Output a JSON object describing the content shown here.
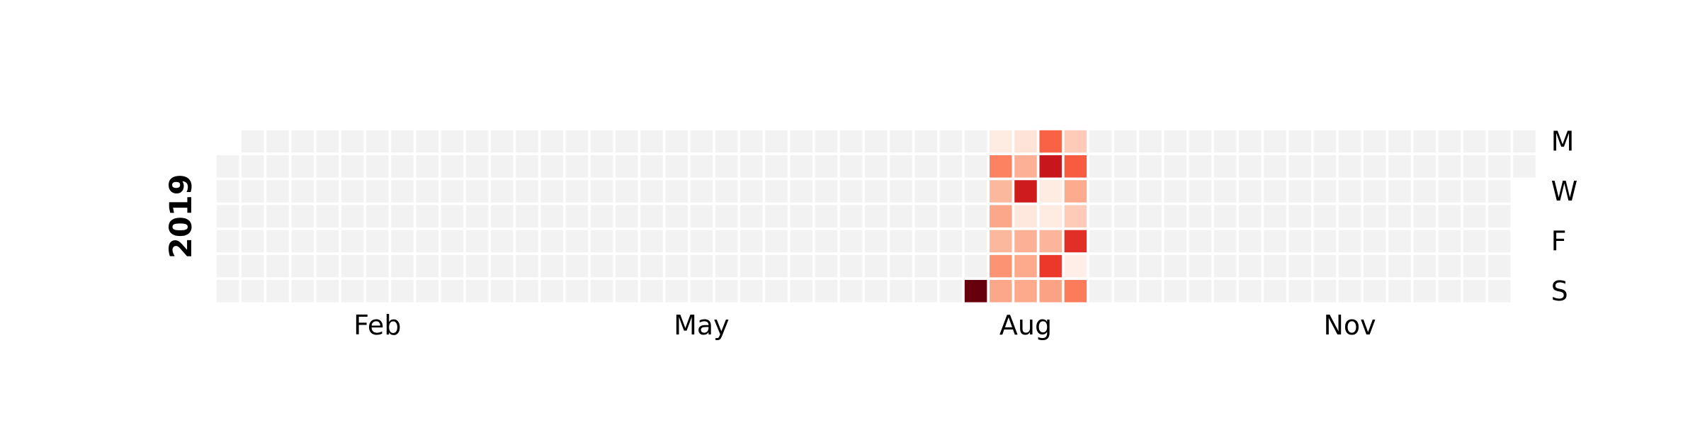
{
  "chart_data": {
    "type": "heatmap",
    "title": "",
    "year": "2019",
    "first_date": "2019-01-01",
    "last_date": "2019-12-31",
    "week_start": "Monday",
    "month_tick_labels": [
      "Feb",
      "May",
      "Aug",
      "Nov"
    ],
    "day_tick_labels": [
      "M",
      "W",
      "F",
      "S"
    ],
    "colormap": "Reds",
    "empty_cell_color": "#f2f2f2",
    "color_stops": [
      "#fff5f0",
      "#fcbba1",
      "#fc9272",
      "#fb6a4a",
      "#ef3b2c",
      "#cb181d",
      "#67000d"
    ],
    "value_range": [
      0,
      10
    ],
    "grid": false,
    "legend": "none",
    "values": [
      {
        "date": "2019-08-04",
        "value": 10
      },
      {
        "date": "2019-08-05",
        "value": 0.3
      },
      {
        "date": "2019-08-06",
        "value": 4
      },
      {
        "date": "2019-08-07",
        "value": 1.8
      },
      {
        "date": "2019-08-08",
        "value": 2.5
      },
      {
        "date": "2019-08-09",
        "value": 1.8
      },
      {
        "date": "2019-08-10",
        "value": 3.3
      },
      {
        "date": "2019-08-11",
        "value": 2.5
      },
      {
        "date": "2019-08-12",
        "value": 0.5
      },
      {
        "date": "2019-08-13",
        "value": 2.1
      },
      {
        "date": "2019-08-14",
        "value": 8.2
      },
      {
        "date": "2019-08-15",
        "value": 0.4
      },
      {
        "date": "2019-08-16",
        "value": 2.1
      },
      {
        "date": "2019-08-17",
        "value": 2.4
      },
      {
        "date": "2019-08-18",
        "value": 2.4
      },
      {
        "date": "2019-08-19",
        "value": 5.3
      },
      {
        "date": "2019-08-20",
        "value": 8.4
      },
      {
        "date": "2019-08-21",
        "value": 0.3
      },
      {
        "date": "2019-08-22",
        "value": 0.3
      },
      {
        "date": "2019-08-23",
        "value": 1.9
      },
      {
        "date": "2019-08-24",
        "value": 6.8
      },
      {
        "date": "2019-08-25",
        "value": 2.7
      },
      {
        "date": "2019-08-26",
        "value": 1.2
      },
      {
        "date": "2019-08-27",
        "value": 5.5
      },
      {
        "date": "2019-08-28",
        "value": 2.3
      },
      {
        "date": "2019-08-29",
        "value": 1.2
      },
      {
        "date": "2019-08-30",
        "value": 7.3
      },
      {
        "date": "2019-08-31",
        "value": 0.2
      },
      {
        "date": "2019-09-01",
        "value": 4.3
      }
    ]
  }
}
